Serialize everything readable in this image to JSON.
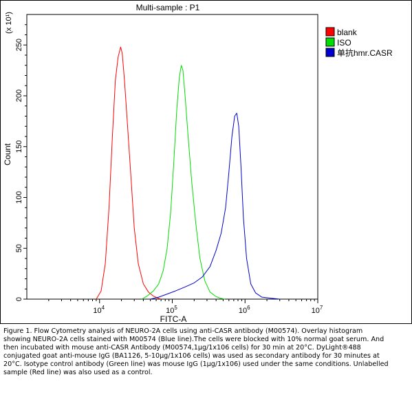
{
  "chart_data": {
    "type": "line",
    "title": "Multi-sample : P1",
    "xlabel": "FITC-A",
    "ylabel": "Count",
    "y_multiplier": "(x 10¹)",
    "x_scale": "log",
    "xlim": [
      1000,
      10000000
    ],
    "ylim": [
      0,
      280
    ],
    "x_ticks": [
      {
        "value": 10000,
        "base": "10",
        "exp": "4"
      },
      {
        "value": 100000,
        "base": "10",
        "exp": "5"
      },
      {
        "value": 1000000,
        "base": "10",
        "exp": "6"
      },
      {
        "value": 10000000,
        "base": "10",
        "exp": "7"
      }
    ],
    "y_ticks": [
      0,
      50,
      100,
      150,
      200,
      250
    ],
    "legend_position": "top-right",
    "series": [
      {
        "name": "blank",
        "color": "#ff0000",
        "x": [
          9000,
          10500,
          12000,
          13500,
          15000,
          16500,
          18000,
          19500,
          20500,
          22000,
          24000,
          27000,
          30000,
          34000,
          40000,
          47000,
          55000,
          63000,
          70000
        ],
        "y": [
          0,
          8,
          35,
          90,
          160,
          215,
          238,
          248,
          242,
          215,
          175,
          120,
          70,
          35,
          15,
          7,
          3,
          1,
          0
        ]
      },
      {
        "name": "ISO",
        "color": "#00dd00",
        "x": [
          38000,
          45000,
          55000,
          65000,
          75000,
          85000,
          95000,
          105000,
          115000,
          125000,
          133000,
          140000,
          150000,
          165000,
          185000,
          210000,
          240000,
          280000,
          330000,
          390000,
          450000,
          530000
        ],
        "y": [
          0,
          3,
          8,
          15,
          28,
          50,
          85,
          135,
          185,
          218,
          230,
          225,
          200,
          160,
          115,
          75,
          40,
          18,
          7,
          3,
          1,
          0
        ]
      },
      {
        "name": "单抗hmr.CASR",
        "color": "#0000cc",
        "x": [
          50000,
          65000,
          85000,
          110000,
          150000,
          200000,
          260000,
          330000,
          400000,
          470000,
          540000,
          600000,
          660000,
          720000,
          770000,
          820000,
          880000,
          950000,
          1050000,
          1200000,
          1400000,
          1700000,
          2200000,
          3000000
        ],
        "y": [
          0,
          2,
          5,
          8,
          12,
          16,
          22,
          32,
          48,
          65,
          90,
          125,
          160,
          180,
          183,
          170,
          130,
          80,
          40,
          15,
          6,
          2,
          1,
          0
        ]
      }
    ]
  },
  "caption": "Figure 1. Flow Cytometry analysis of NEURO-2A cells using anti-CASR antibody (M00574). Overlay histogram showing NEURO-2A cells stained with M00574 (Blue line).The cells were blocked with 10% normal goat serum. And then incubated with mouse anti-CASR Antibody (M00574,1μg/1x106 cells) for 30 min at 20°C. DyLight®488 conjugated goat anti-mouse IgG (BA1126, 5-10μg/1x106 cells) was used as secondary antibody for 30 minutes at 20°C. Isotype control antibody (Green line) was mouse IgG (1μg/1x106) used under the same conditions. Unlabelled sample (Red line) was also used as a control."
}
